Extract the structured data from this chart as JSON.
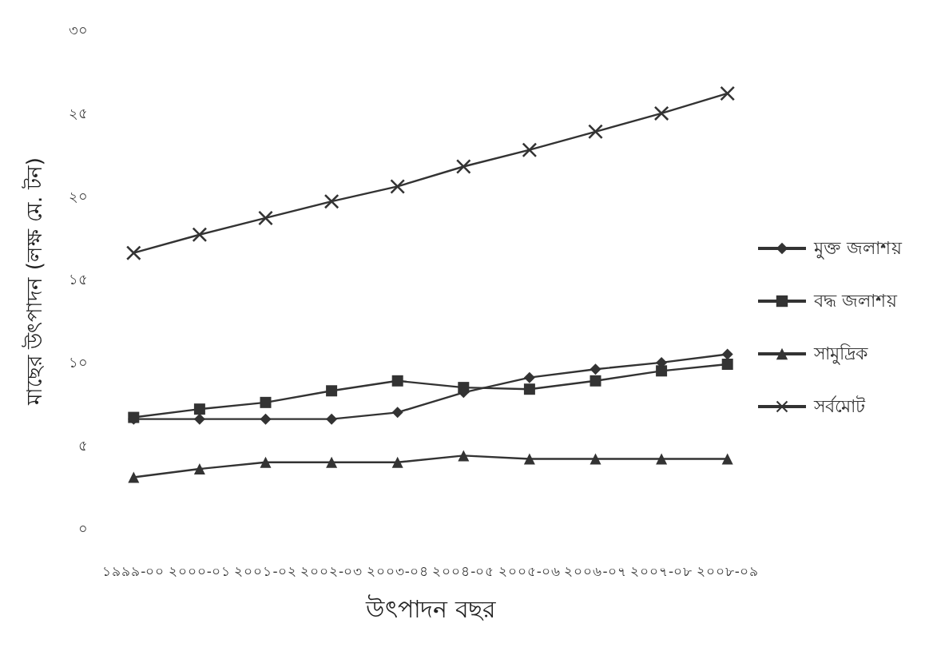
{
  "chart_data": {
    "type": "line",
    "xlabel": "উৎপাদন বছর",
    "ylabel": "মাছের উৎপাদন (লক্ষ মে. টন)",
    "categories": [
      "১৯৯৯-০০",
      "২০০০-০১",
      "২০০১-০২",
      "২০০২-০৩",
      "২০০৩-০৪",
      "২০০৪-০৫",
      "২০০৫-০৬",
      "২০০৬-০৭",
      "২০০৭-০৮",
      "২০০৮-০৯"
    ],
    "series": [
      {
        "name": "মুক্ত জলাশয়",
        "color": "#333333",
        "marker": "diamond",
        "values": [
          6.7,
          6.7,
          6.7,
          6.7,
          7.1,
          8.3,
          9.2,
          9.7,
          10.1,
          10.6
        ]
      },
      {
        "name": "বদ্ধ জলাশয়",
        "color": "#333333",
        "marker": "square",
        "values": [
          6.8,
          7.3,
          7.7,
          8.4,
          9.0,
          8.6,
          8.5,
          9.0,
          9.6,
          10.0
        ]
      },
      {
        "name": "সামুদ্রিক",
        "color": "#333333",
        "marker": "triangle",
        "values": [
          3.2,
          3.7,
          4.1,
          4.1,
          4.1,
          4.5,
          4.3,
          4.3,
          4.3,
          4.3
        ]
      },
      {
        "name": "সর্বমোট",
        "color": "#333333",
        "marker": "cross",
        "values": [
          16.7,
          17.8,
          18.8,
          19.8,
          20.7,
          21.9,
          22.9,
          24.0,
          25.1,
          26.3
        ]
      }
    ],
    "ylim": [
      0,
      30
    ],
    "yticks": [
      {
        "value": 0,
        "label": "০"
      },
      {
        "value": 5,
        "label": "৫"
      },
      {
        "value": 10,
        "label": "১০"
      },
      {
        "value": 15,
        "label": "১৫"
      },
      {
        "value": 20,
        "label": "২০"
      },
      {
        "value": 25,
        "label": "২৫"
      },
      {
        "value": 30,
        "label": "৩০"
      }
    ],
    "grid": false,
    "legend": "right",
    "line_style": "solid"
  }
}
